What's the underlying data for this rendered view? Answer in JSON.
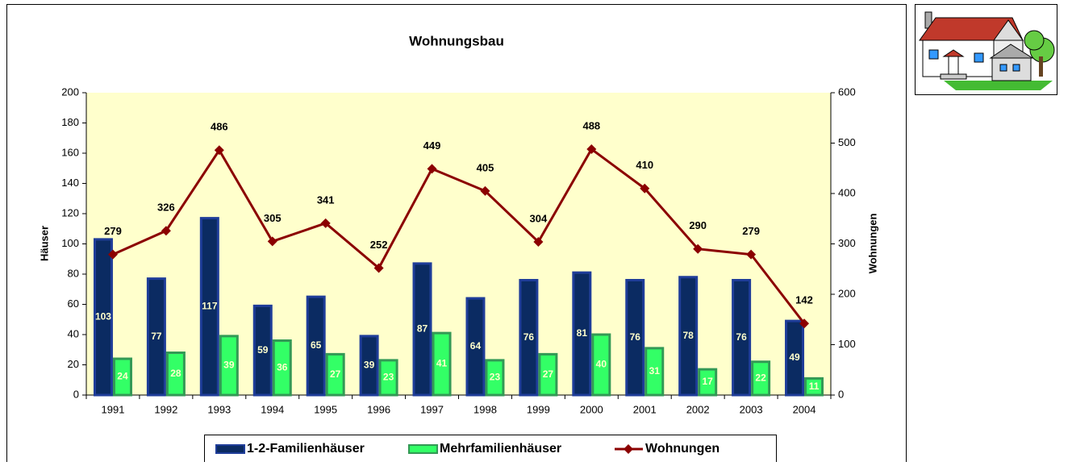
{
  "chart_data": {
    "type": "bar",
    "title": "Wohnungsbau",
    "y_label": "Häuser",
    "y2_label": "Wohnungen",
    "categories": [
      "1991",
      "1992",
      "1993",
      "1994",
      "1995",
      "1996",
      "1997",
      "1998",
      "1999",
      "2000",
      "2001",
      "2002",
      "2003",
      "2004"
    ],
    "series": [
      {
        "name": "1-2-Familienhäuser",
        "type": "bar",
        "color": "#0b2b62",
        "values": [
          103,
          77,
          117,
          59,
          65,
          39,
          87,
          64,
          76,
          81,
          76,
          78,
          76,
          49
        ]
      },
      {
        "name": "Mehrfamilienhäuser",
        "type": "bar",
        "color": "#33ff66",
        "values": [
          24,
          28,
          39,
          36,
          27,
          23,
          41,
          23,
          27,
          40,
          31,
          17,
          22,
          11
        ]
      },
      {
        "name": "Wohnungen",
        "type": "line",
        "axis": "y2",
        "color": "#8b0000",
        "values": [
          279,
          326,
          486,
          305,
          341,
          252,
          449,
          405,
          304,
          488,
          410,
          290,
          279,
          142
        ]
      }
    ],
    "ylim": [
      0,
      200
    ],
    "yticks": [
      0,
      20,
      40,
      60,
      80,
      100,
      120,
      140,
      160,
      180,
      200
    ],
    "y2lim": [
      0,
      600
    ],
    "y2ticks": [
      0,
      100,
      200,
      300,
      400,
      500,
      600
    ],
    "plot_background": "#ffffcc",
    "legend": "bottom"
  }
}
